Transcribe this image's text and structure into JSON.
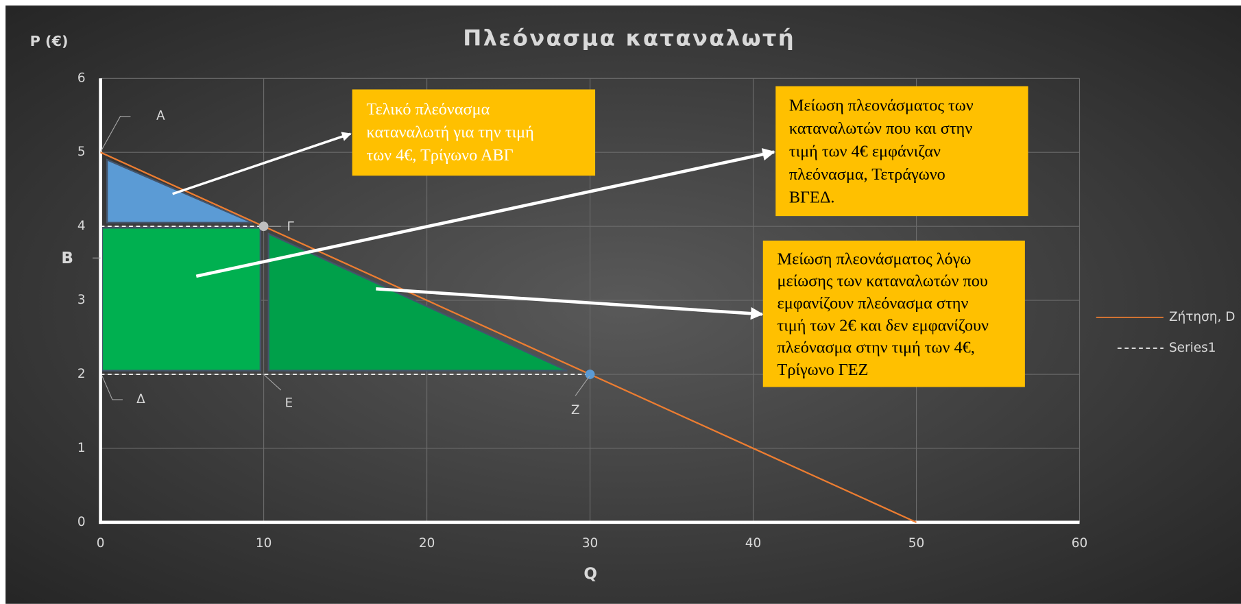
{
  "chart_data": {
    "type": "line",
    "title": "Πλεόνασμα καταναλωτή",
    "xlabel": "Q",
    "ylabel": "P (€)",
    "xlim": [
      0,
      60
    ],
    "ylim": [
      0,
      6
    ],
    "xticks": [
      0,
      10,
      20,
      30,
      40,
      50,
      60
    ],
    "yticks": [
      0,
      1,
      2,
      3,
      4,
      5,
      6
    ],
    "grid": true,
    "series": [
      {
        "name": "Ζήτηση, D",
        "color": "#ed7d31",
        "dash": false,
        "x": [
          0,
          50
        ],
        "values": [
          5,
          0
        ]
      },
      {
        "name": "Series1",
        "color": "#ffffff",
        "dash": true,
        "x": [
          0,
          10,
          10,
          0,
          30
        ],
        "values": [
          4,
          4,
          null,
          2,
          2
        ],
        "marker_colors": [
          null,
          "#bfbfbf",
          null,
          null,
          "#5b9bd5"
        ]
      }
    ],
    "legend": "right",
    "point_labels": [
      "Α",
      "Β",
      "Γ",
      "Δ",
      "Ε",
      "Ζ"
    ],
    "annotations": [
      {
        "lines": [
          "Τελικό πλεόνασμα",
          "καταναλωτή για την τιμή",
          "των 4€, Τρίγωνο ΑΒΓ"
        ],
        "text_color": "#ffffff"
      },
      {
        "lines": [
          "Μείωση πλεονάσματος των",
          "καταναλωτών που και στην",
          "τιμή των 4€ εμφάνιζαν",
          "πλεόνασμα, Τετράγωνο",
          "ΒΓΕΔ."
        ],
        "text_color": "#000000"
      },
      {
        "lines": [
          "Μείωση πλεονάσματος λόγω",
          "μείωσης των καταναλωτών που",
          "εμφανίζουν πλεόνασμα στην",
          "τιμή των 2€ και δεν εμφανίζουν",
          "πλεόνασμα στην τιμή των 4€,",
          "Τρίγωνο ΓΕΖ"
        ],
        "text_color": "#000000"
      }
    ]
  }
}
